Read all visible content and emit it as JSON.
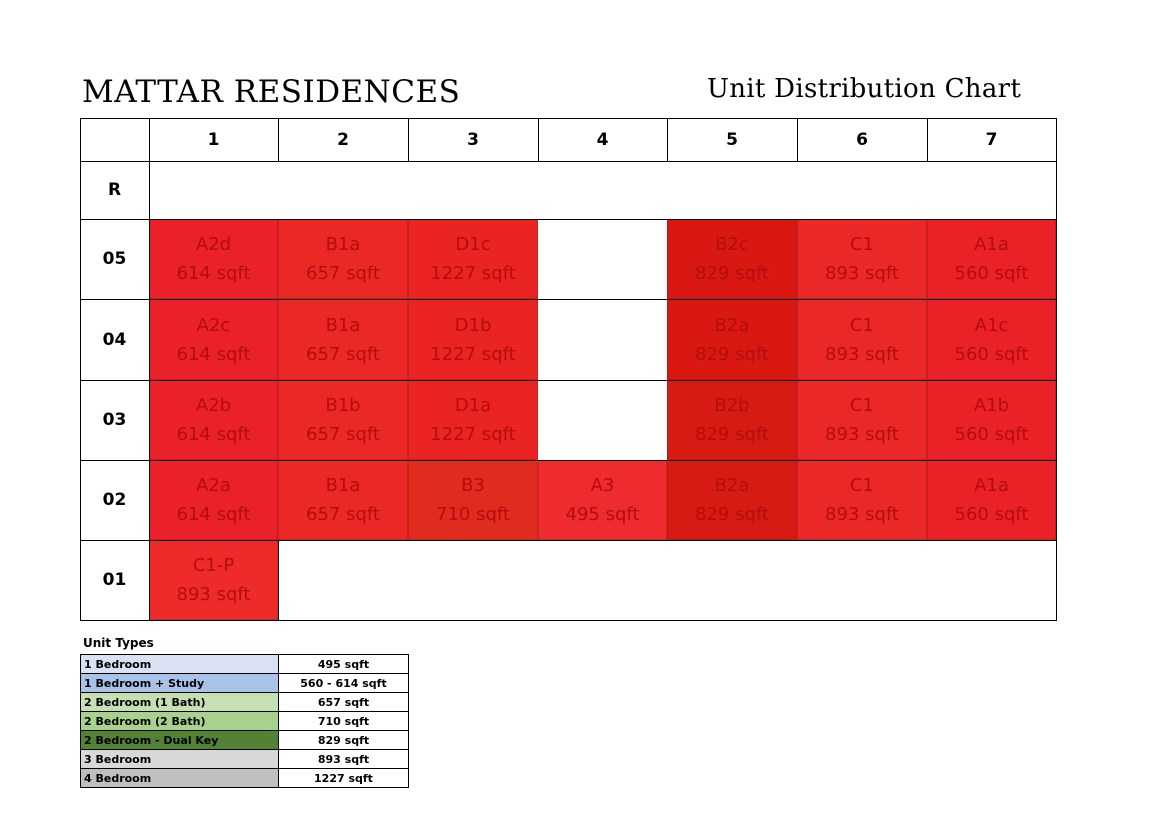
{
  "header": {
    "project_title": "MATTAR RESIDENCES",
    "chart_title": "Unit Distribution Chart"
  },
  "columns": [
    "1",
    "2",
    "3",
    "4",
    "5",
    "6",
    "7"
  ],
  "floors": [
    {
      "label": "R",
      "units": []
    },
    {
      "label": "05",
      "units": [
        {
          "stack": "1",
          "name": "A2d",
          "size": "614 sqft",
          "color": "#ea2128"
        },
        {
          "stack": "2",
          "name": "B1a",
          "size": "657 sqft",
          "color": "#ea2926"
        },
        {
          "stack": "3",
          "name": "D1c",
          "size": "1227 sqft",
          "color": "#ea2422"
        },
        {
          "stack": "5",
          "name": "B2c",
          "size": "829 sqft",
          "color": "#d81811"
        },
        {
          "stack": "6",
          "name": "C1",
          "size": "893 sqft",
          "color": "#ea2828"
        },
        {
          "stack": "7",
          "name": "A1a",
          "size": "560 sqft",
          "color": "#ea2127"
        }
      ]
    },
    {
      "label": "04",
      "units": [
        {
          "stack": "1",
          "name": "A2c",
          "size": "614 sqft",
          "color": "#ea2128"
        },
        {
          "stack": "2",
          "name": "B1a",
          "size": "657 sqft",
          "color": "#ea2926"
        },
        {
          "stack": "3",
          "name": "D1b",
          "size": "1227 sqft",
          "color": "#ea2422"
        },
        {
          "stack": "5",
          "name": "B2a",
          "size": "829 sqft",
          "color": "#d81811"
        },
        {
          "stack": "6",
          "name": "C1",
          "size": "893 sqft",
          "color": "#ea2828"
        },
        {
          "stack": "7",
          "name": "A1c",
          "size": "560 sqft",
          "color": "#ea2127"
        }
      ]
    },
    {
      "label": "03",
      "units": [
        {
          "stack": "1",
          "name": "A2b",
          "size": "614 sqft",
          "color": "#ea2128"
        },
        {
          "stack": "2",
          "name": "B1b",
          "size": "657 sqft",
          "color": "#ea2926"
        },
        {
          "stack": "3",
          "name": "D1a",
          "size": "1227 sqft",
          "color": "#ea2422"
        },
        {
          "stack": "5",
          "name": "B2b",
          "size": "829 sqft",
          "color": "#d61b12"
        },
        {
          "stack": "6",
          "name": "C1",
          "size": "893 sqft",
          "color": "#ea2828"
        },
        {
          "stack": "7",
          "name": "A1b",
          "size": "560 sqft",
          "color": "#ea2127"
        }
      ]
    },
    {
      "label": "02",
      "units": [
        {
          "stack": "1",
          "name": "A2a",
          "size": "614 sqft",
          "color": "#ea2128"
        },
        {
          "stack": "2",
          "name": "B1a",
          "size": "657 sqft",
          "color": "#ea2926"
        },
        {
          "stack": "3",
          "name": "B3",
          "size": "710 sqft",
          "color": "#e22b1f"
        },
        {
          "stack": "4",
          "name": "A3",
          "size": "495 sqft",
          "color": "#ee2b2e"
        },
        {
          "stack": "5",
          "name": "B2a",
          "size": "829 sqft",
          "color": "#d61b12"
        },
        {
          "stack": "6",
          "name": "C1",
          "size": "893 sqft",
          "color": "#ea2828"
        },
        {
          "stack": "7",
          "name": "A1a",
          "size": "560 sqft",
          "color": "#ea2127"
        }
      ]
    },
    {
      "label": "01",
      "units": [
        {
          "stack": "1",
          "name": "C1-P",
          "size": "893 sqft",
          "color": "#ef2a2a"
        }
      ]
    }
  ],
  "legend": {
    "title": "Unit Types",
    "items": [
      {
        "type": "1 Bedroom",
        "size": "495 sqft",
        "color": "#dae1f2"
      },
      {
        "type": "1 Bedroom + Study",
        "size": "560 - 614 sqft",
        "color": "#a9c3e8"
      },
      {
        "type": "2 Bedroom (1 Bath)",
        "size": "657 sqft",
        "color": "#c7e0b3"
      },
      {
        "type": "2 Bedroom (2 Bath)",
        "size": "710 sqft",
        "color": "#a8d18e"
      },
      {
        "type": "2 Bedroom - Dual Key",
        "size": "829 sqft",
        "color": "#548235"
      },
      {
        "type": "3 Bedroom",
        "size": "893 sqft",
        "color": "#d8d8d8"
      },
      {
        "type": "4 Bedroom",
        "size": "1227 sqft",
        "color": "#bfbfbf"
      }
    ]
  }
}
